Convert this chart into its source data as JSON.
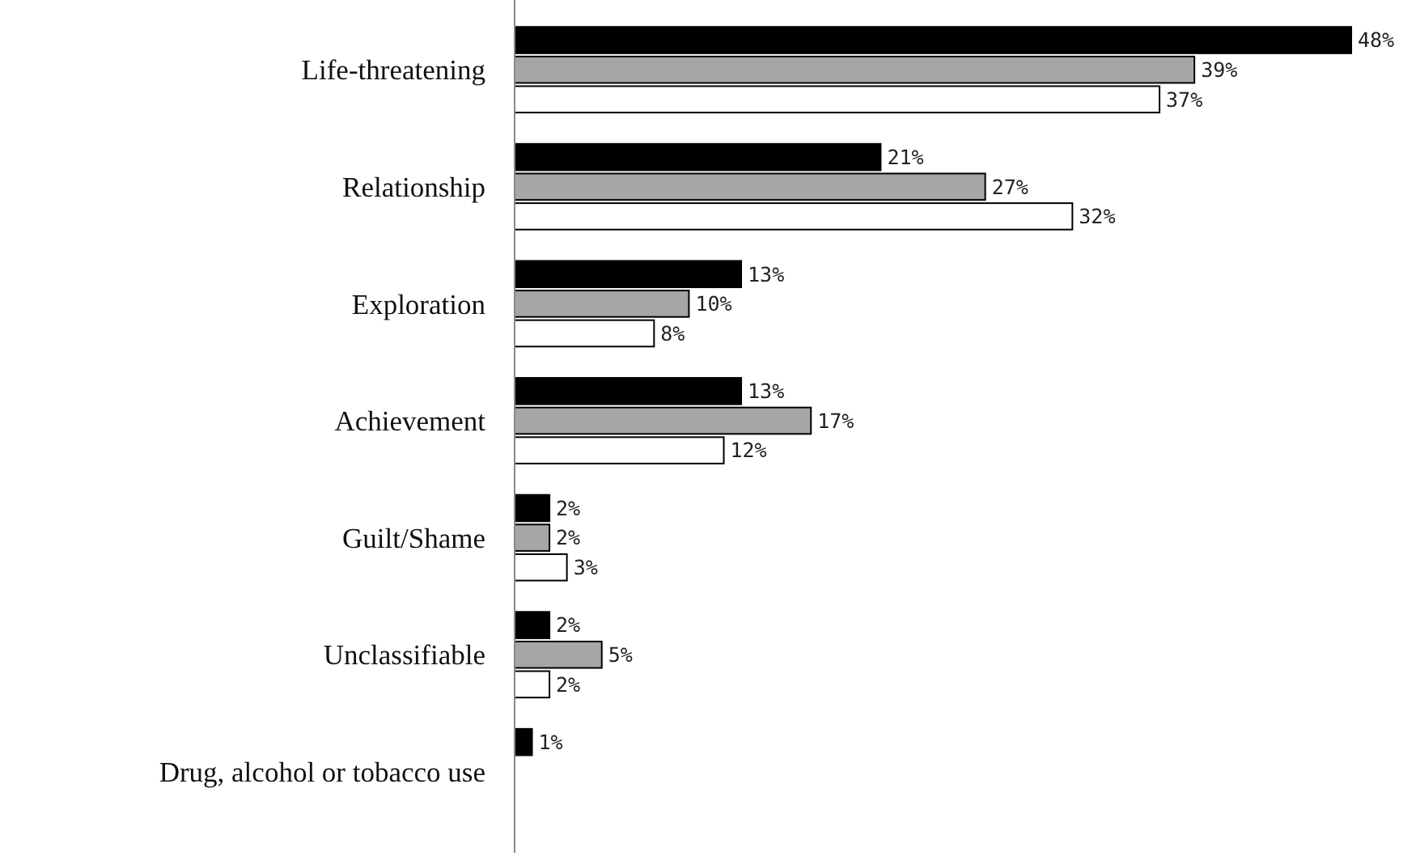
{
  "chart_data": {
    "type": "bar",
    "orientation": "horizontal",
    "categories": [
      "Life-threatening",
      "Relationship",
      "Exploration",
      "Achievement",
      "Guilt/Shame",
      "Unclassifiable",
      "Drug, alcohol or tobacco use"
    ],
    "series": [
      {
        "color": "#000000",
        "values": [
          48,
          21,
          13,
          13,
          2,
          2,
          1
        ],
        "value_labels": [
          "48%",
          "21%",
          "13%",
          "13%",
          "2%",
          "2%",
          "1%"
        ]
      },
      {
        "color": "#a6a6a6",
        "values": [
          39,
          27,
          10,
          17,
          2,
          5,
          null
        ],
        "value_labels": [
          "39%",
          "27%",
          "10%",
          "17%",
          "2%",
          "5%",
          null
        ]
      },
      {
        "color": "#ffffff",
        "values": [
          37,
          32,
          8,
          12,
          3,
          2,
          null
        ],
        "value_labels": [
          "37%",
          "32%",
          "8%",
          "12%",
          "3%",
          "2%",
          null
        ]
      }
    ]
  }
}
